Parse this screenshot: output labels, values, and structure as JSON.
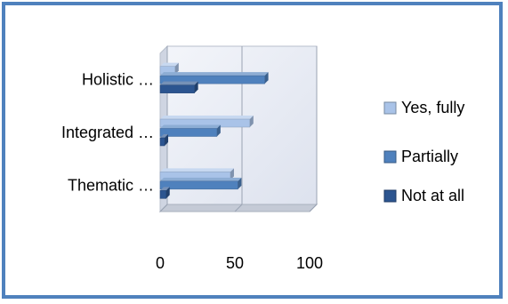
{
  "chart_data": {
    "type": "bar",
    "orientation": "horizontal",
    "three_d": true,
    "categories": [
      "Thematic …",
      "Integrated …",
      "Holistic …"
    ],
    "series": [
      {
        "name": "Yes, fully",
        "values": [
          47,
          60,
          10
        ],
        "color": "#a9c3e8"
      },
      {
        "name": "Partially",
        "values": [
          52,
          38,
          70
        ],
        "color": "#4f81bd"
      },
      {
        "name": "Not at all",
        "values": [
          4,
          3,
          23
        ],
        "color": "#2c5590"
      }
    ],
    "xlim": [
      0,
      100
    ],
    "x_ticks": [
      "0",
      "50",
      "100"
    ],
    "grid": true,
    "legend_position": "right",
    "frame_color": "#4f81bd",
    "wall_color": "#e4e8f2"
  }
}
